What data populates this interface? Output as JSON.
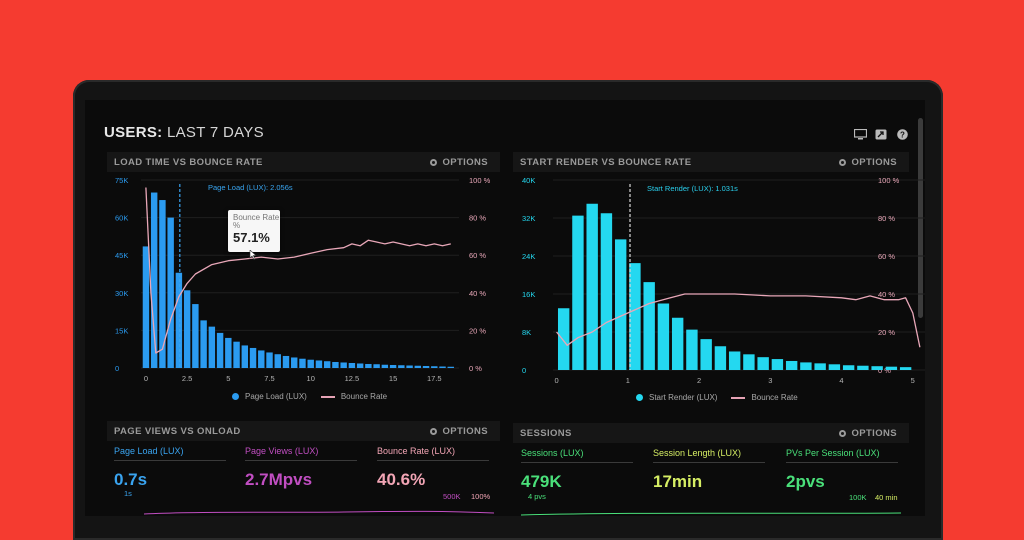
{
  "dashboard": {
    "title_bold": "USERS:",
    "title_rest": " LAST 7 DAYS",
    "icons": [
      "monitor-icon",
      "share-icon",
      "help-icon"
    ]
  },
  "options_label": "OPTIONS",
  "colors": {
    "background": "#f53b30",
    "bar_blue": "#2b9bf0",
    "bar_cyan": "#24d8f0",
    "bounce_line": "#e8a7b8",
    "accent_green": "#4ae07a",
    "accent_purple": "#c14ec2",
    "accent_pink": "#f2a5b5"
  },
  "panels": {
    "load_time": {
      "title": "LOAD TIME VS BOUNCE RATE",
      "marker_label": "Page Load (LUX): 2.056s",
      "legend_bar": "Page Load (LUX)",
      "legend_line": "Bounce Rate",
      "tooltip": {
        "line1": "Bounce Rate",
        "line2": "%",
        "value": "57.1%"
      }
    },
    "start_render": {
      "title": "START RENDER VS BOUNCE RATE",
      "marker_label": "Start Render (LUX): 1.031s",
      "legend_bar": "Start Render (LUX)",
      "legend_line": "Bounce Rate"
    },
    "page_views": {
      "title": "PAGE VIEWS VS ONLOAD",
      "metrics": [
        {
          "label": "Page Load (LUX)",
          "value": "0.7s"
        },
        {
          "label": "Page Views (LUX)",
          "value": "2.7Mpvs"
        },
        {
          "label": "Bounce Rate (LUX)",
          "value": "40.6%"
        }
      ],
      "axis_left": "1s",
      "axis_right_1": "500K",
      "axis_right_2": "100%"
    },
    "sessions": {
      "title": "SESSIONS",
      "metrics": [
        {
          "label": "Sessions (LUX)",
          "value": "479K"
        },
        {
          "label": "Session Length (LUX)",
          "value": "17min"
        },
        {
          "label": "PVs Per Session (LUX)",
          "value": "2pvs"
        }
      ],
      "axis_left": "4 pvs",
      "axis_right_1": "100K",
      "axis_right_2": "40 min"
    }
  },
  "chart_data": [
    {
      "type": "bar",
      "title": "LOAD TIME VS BOUNCE RATE",
      "x_ticks": [
        "0",
        "2.5",
        "5",
        "7.5",
        "10",
        "12.5",
        "15",
        "17.5"
      ],
      "x_tick_values": [
        0,
        2.5,
        5,
        7.5,
        10,
        12.5,
        15,
        17.5
      ],
      "xlim": [
        -0.3,
        19
      ],
      "y_ticks": [
        "0",
        "15K",
        "30K",
        "45K",
        "60K",
        "75K"
      ],
      "ylim": [
        0,
        75000
      ],
      "y2_ticks": [
        "0 %",
        "20 %",
        "40 %",
        "60 %",
        "80 %",
        "100 %"
      ],
      "y2lim": [
        0,
        100
      ],
      "marker_x": 2.056,
      "series": [
        {
          "name": "Page Load (LUX)",
          "x": [
            0,
            0.5,
            1,
            1.5,
            2,
            2.5,
            3,
            3.5,
            4,
            4.5,
            5,
            5.5,
            6,
            6.5,
            7,
            7.5,
            8,
            8.5,
            9,
            9.5,
            10,
            10.5,
            11,
            11.5,
            12,
            12.5,
            13,
            13.5,
            14,
            14.5,
            15,
            15.5,
            16,
            16.5,
            17,
            17.5,
            18,
            18.5
          ],
          "values": [
            48500,
            70000,
            67000,
            60000,
            38000,
            31000,
            25500,
            19000,
            16500,
            14000,
            12000,
            10500,
            9000,
            8000,
            7000,
            6200,
            5500,
            4800,
            4200,
            3700,
            3300,
            3000,
            2700,
            2400,
            2200,
            2000,
            1800,
            1600,
            1500,
            1300,
            1200,
            1100,
            1000,
            900,
            800,
            700,
            600,
            500
          ]
        },
        {
          "name": "Bounce Rate",
          "x": [
            0,
            0.3,
            0.6,
            1,
            1.5,
            2,
            2.5,
            3,
            4,
            5,
            6,
            7,
            8,
            9,
            10,
            11,
            12,
            12.5,
            13,
            13.5,
            14,
            14.5,
            15,
            15.5,
            16,
            16.5,
            17,
            17.5,
            18,
            18.5
          ],
          "values": [
            96,
            40,
            8,
            10,
            26,
            38,
            45,
            50,
            55,
            57.1,
            58,
            59,
            58,
            59,
            61,
            63,
            64,
            66,
            65,
            68,
            67,
            66,
            67,
            66,
            65,
            66,
            65,
            66,
            65,
            66
          ]
        }
      ]
    },
    {
      "type": "bar",
      "title": "START RENDER VS BOUNCE RATE",
      "x_ticks": [
        "0",
        "1",
        "2",
        "3",
        "4",
        "5"
      ],
      "x_tick_values": [
        0,
        1,
        2,
        3,
        4,
        5
      ],
      "xlim": [
        -0.05,
        5.2
      ],
      "y_ticks": [
        "0",
        "8K",
        "16K",
        "24K",
        "32K",
        "40K"
      ],
      "ylim": [
        0,
        40000
      ],
      "y2_ticks": [
        "0 %",
        "20 %",
        "40 %",
        "60 %",
        "80 %",
        "100 %"
      ],
      "y2lim": [
        0,
        100
      ],
      "marker_x": 1.031,
      "series": [
        {
          "name": "Start Render (LUX)",
          "x": [
            0.1,
            0.3,
            0.5,
            0.7,
            0.9,
            1.1,
            1.3,
            1.5,
            1.7,
            1.9,
            2.1,
            2.3,
            2.5,
            2.7,
            2.9,
            3.1,
            3.3,
            3.5,
            3.7,
            3.9,
            4.1,
            4.3,
            4.5,
            4.7,
            4.9
          ],
          "values": [
            13000,
            32500,
            35000,
            33000,
            27500,
            22500,
            18500,
            14000,
            11000,
            8500,
            6500,
            5000,
            3900,
            3300,
            2700,
            2300,
            1900,
            1600,
            1400,
            1200,
            1000,
            900,
            800,
            700,
            600
          ]
        },
        {
          "name": "Bounce Rate",
          "x": [
            0,
            0.15,
            0.3,
            0.5,
            0.7,
            1,
            1.3,
            1.6,
            1.8,
            2,
            2.5,
            3,
            3.5,
            4,
            4.2,
            4.4,
            4.6,
            4.8,
            4.9,
            5.0,
            5.1
          ],
          "values": [
            20,
            13,
            17,
            20,
            25,
            30,
            35,
            38,
            40,
            40,
            40,
            39,
            39,
            38,
            37,
            39,
            37,
            37,
            38,
            30,
            12
          ]
        }
      ]
    }
  ]
}
